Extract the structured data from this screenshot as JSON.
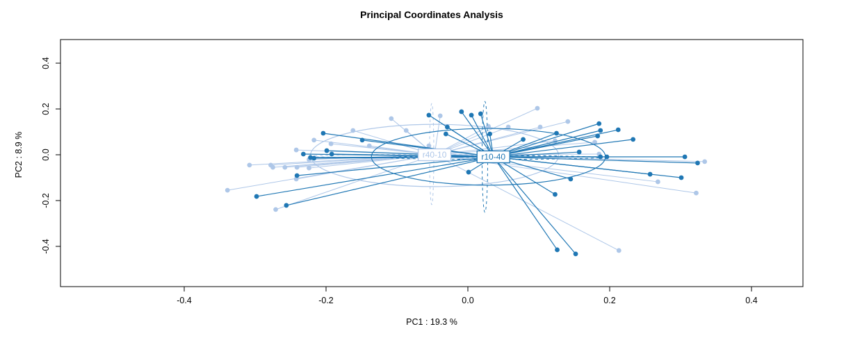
{
  "chart_data": {
    "type": "scatter",
    "title": "Principal Coordinates Analysis",
    "xlabel": "PC1 : 19.3 %",
    "ylabel": "PC2 : 8.9 %",
    "xlim": [
      -0.575,
      0.473
    ],
    "ylim": [
      -0.576,
      0.503
    ],
    "grid": false,
    "legend_position": "none (groups labeled at centroid boxes)",
    "x_ticks": [
      -0.4,
      -0.2,
      0.0,
      0.2,
      0.4
    ],
    "y_ticks": [
      -0.4,
      -0.2,
      0.0,
      0.2,
      0.4
    ],
    "x_tick_labels": [
      "-0.4",
      "-0.2",
      "0.0",
      "0.2",
      "0.4"
    ],
    "y_tick_labels": [
      "-0.4",
      "-0.2",
      "0.0",
      "0.2",
      "0.4"
    ],
    "frame_color": "#000000",
    "series": [
      {
        "name": "r40-10",
        "color": "#aec7e8",
        "line_width": 1,
        "centroid": {
          "x": -0.047,
          "y": 0.0
        },
        "ellipse_solid": {
          "cx": -0.047,
          "cy": -0.003,
          "rx": 0.175,
          "ry": 0.136
        },
        "ellipses_dashed": [
          {
            "cx": -0.047,
            "cy": -0.006,
            "rx": 0.174,
            "ry": 0.008
          },
          {
            "cx": -0.051,
            "cy": 0.003,
            "rx": 0.003,
            "ry": 0.221
          }
        ],
        "points": [
          [
            -0.108,
            0.158
          ],
          [
            -0.162,
            0.106
          ],
          [
            -0.087,
            0.106
          ],
          [
            -0.217,
            0.064
          ],
          [
            -0.193,
            0.048
          ],
          [
            -0.139,
            0.039
          ],
          [
            -0.242,
            0.021
          ],
          [
            -0.308,
            -0.045
          ],
          [
            -0.278,
            -0.045
          ],
          [
            -0.275,
            -0.055
          ],
          [
            -0.258,
            -0.055
          ],
          [
            -0.224,
            -0.021
          ],
          [
            -0.224,
            -0.058
          ],
          [
            -0.241,
            -0.055
          ],
          [
            -0.242,
            -0.106
          ],
          [
            -0.339,
            -0.155
          ],
          [
            -0.271,
            -0.239
          ],
          [
            -0.039,
            0.17
          ],
          [
            0.029,
            0.124
          ],
          [
            0.057,
            0.121
          ],
          [
            0.098,
            0.203
          ],
          [
            0.102,
            0.121
          ],
          [
            0.123,
            0.061
          ],
          [
            0.141,
            0.145
          ],
          [
            0.179,
            0.055
          ],
          [
            0.185,
            0.003
          ],
          [
            0.268,
            -0.118
          ],
          [
            0.334,
            -0.03
          ],
          [
            0.322,
            -0.167
          ],
          [
            0.213,
            -0.418
          ],
          [
            -0.055,
            0.039
          ]
        ]
      },
      {
        "name": "r10-40",
        "color": "#1f77b4",
        "line_width": 1.2,
        "centroid": {
          "x": 0.036,
          "y": -0.009
        },
        "ellipse_solid": {
          "cx": 0.029,
          "cy": -0.009,
          "rx": 0.165,
          "ry": 0.124
        },
        "ellipses_dashed": [
          {
            "cx": 0.036,
            "cy": -0.012,
            "rx": 0.149,
            "ry": 0.008
          },
          {
            "cx": 0.024,
            "cy": -0.009,
            "rx": 0.004,
            "ry": 0.242
          }
        ],
        "points": [
          [
            -0.204,
            0.094
          ],
          [
            -0.149,
            0.064
          ],
          [
            -0.232,
            0.003
          ],
          [
            -0.222,
            -0.012
          ],
          [
            -0.217,
            -0.015
          ],
          [
            -0.199,
            0.018
          ],
          [
            -0.192,
            0.003
          ],
          [
            -0.241,
            -0.091
          ],
          [
            -0.298,
            -0.182
          ],
          [
            -0.256,
            -0.221
          ],
          [
            -0.055,
            0.173
          ],
          [
            -0.009,
            0.188
          ],
          [
            0.005,
            0.173
          ],
          [
            0.018,
            0.179
          ],
          [
            -0.029,
            0.121
          ],
          [
            -0.031,
            0.091
          ],
          [
            0.031,
            0.091
          ],
          [
            0.078,
            0.067
          ],
          [
            0.125,
            0.094
          ],
          [
            0.157,
            0.012
          ],
          [
            0.001,
            -0.076
          ],
          [
            0.145,
            -0.106
          ],
          [
            0.123,
            -0.173
          ],
          [
            0.126,
            -0.415
          ],
          [
            0.152,
            -0.433
          ],
          [
            0.185,
            0.136
          ],
          [
            0.187,
            0.106
          ],
          [
            0.212,
            0.109
          ],
          [
            0.183,
            0.082
          ],
          [
            0.233,
            0.067
          ],
          [
            0.187,
            -0.009
          ],
          [
            0.196,
            -0.009
          ],
          [
            0.306,
            -0.009
          ],
          [
            0.324,
            -0.036
          ],
          [
            0.257,
            -0.085
          ],
          [
            0.301,
            -0.1
          ]
        ]
      }
    ]
  }
}
